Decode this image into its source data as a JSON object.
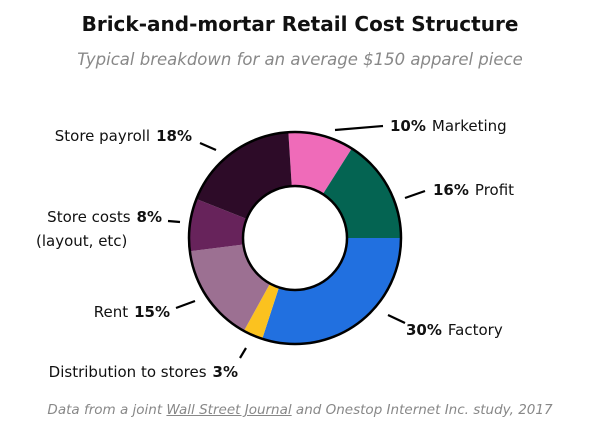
{
  "chart_data": {
    "type": "pie",
    "donut": true,
    "title": "Brick-and-mortar Retail Cost Structure",
    "subtitle": "Typical breakdown for an average $150 apparel piece",
    "slices": [
      {
        "label": "Marketing",
        "value": 10,
        "pct": "10%",
        "color": "#ef6bb9"
      },
      {
        "label": "Profit",
        "value": 16,
        "pct": "16%",
        "color": "#046452"
      },
      {
        "label": "Factory",
        "value": 30,
        "pct": "30%",
        "color": "#2170e0"
      },
      {
        "label": "Distribution to stores",
        "value": 3,
        "pct": "3%",
        "color": "#fbc21f"
      },
      {
        "label": "Rent",
        "value": 15,
        "pct": "15%",
        "color": "#9c7092"
      },
      {
        "label": "Store costs",
        "label2": "(layout, etc)",
        "value": 8,
        "pct": "8%",
        "color": "#67235b"
      },
      {
        "label": "Store payroll",
        "value": 18,
        "pct": "18%",
        "color": "#2d0b28"
      }
    ],
    "footer": {
      "pre": "Data from a joint ",
      "link": "Wall Street Journal",
      "post": " and Onestop Internet Inc. study, 2017"
    }
  }
}
